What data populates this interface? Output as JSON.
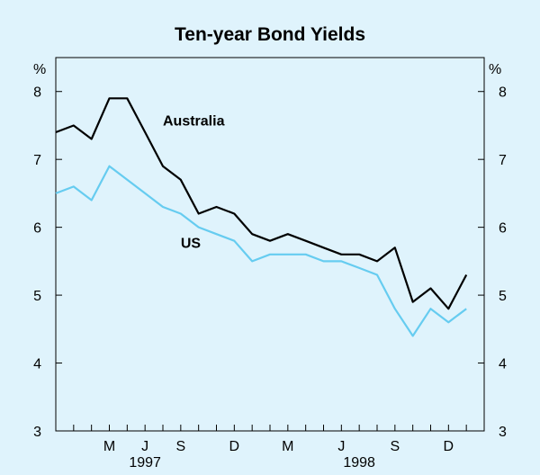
{
  "chart_data": {
    "type": "line",
    "title": "Ten-year Bond Yields",
    "y_unit_left": "%",
    "y_unit_right": "%",
    "ylim": [
      3,
      8.5
    ],
    "yticks": [
      3,
      4,
      5,
      6,
      7,
      8
    ],
    "grid": false,
    "legend": "inline labels",
    "xlim": [
      "1997-02",
      "1999-02"
    ],
    "x_ticks": [
      {
        "label": "M",
        "x": "1997-05"
      },
      {
        "label": "J",
        "x": "1997-07"
      },
      {
        "label": "S",
        "x": "1997-09"
      },
      {
        "label": "D",
        "x": "1997-12"
      },
      {
        "label": "M",
        "x": "1998-03"
      },
      {
        "label": "J",
        "x": "1998-06"
      },
      {
        "label": "S",
        "x": "1998-09"
      },
      {
        "label": "D",
        "x": "1998-12"
      }
    ],
    "year_labels": [
      {
        "label": "1997",
        "x": "1997-07"
      },
      {
        "label": "1998",
        "x": "1998-07"
      }
    ],
    "series": [
      {
        "name": "Australia",
        "color": "#000000",
        "x": [
          "1997-02",
          "1997-03",
          "1997-04",
          "1997-05",
          "1997-06",
          "1997-07",
          "1997-08",
          "1997-09",
          "1997-10",
          "1997-11",
          "1997-12",
          "1998-01",
          "1998-02",
          "1998-03",
          "1998-04",
          "1998-05",
          "1998-06",
          "1998-07",
          "1998-08",
          "1998-09",
          "1998-10",
          "1998-11",
          "1998-12",
          "1999-01"
        ],
        "values": [
          7.4,
          7.5,
          7.3,
          7.9,
          7.9,
          7.4,
          6.9,
          6.7,
          6.2,
          6.3,
          6.2,
          5.9,
          5.8,
          5.9,
          5.8,
          5.7,
          5.6,
          5.6,
          5.5,
          5.7,
          4.9,
          5.1,
          4.8,
          5.3
        ]
      },
      {
        "name": "US",
        "color": "#66ccf0",
        "x": [
          "1997-02",
          "1997-03",
          "1997-04",
          "1997-05",
          "1997-06",
          "1997-07",
          "1997-08",
          "1997-09",
          "1997-10",
          "1997-11",
          "1997-12",
          "1998-01",
          "1998-02",
          "1998-03",
          "1998-04",
          "1998-05",
          "1998-06",
          "1998-07",
          "1998-08",
          "1998-09",
          "1998-10",
          "1998-11",
          "1998-12",
          "1999-01"
        ],
        "values": [
          6.5,
          6.6,
          6.4,
          6.9,
          6.7,
          6.5,
          6.3,
          6.2,
          6.0,
          5.9,
          5.8,
          5.5,
          5.6,
          5.6,
          5.6,
          5.5,
          5.5,
          5.4,
          5.3,
          4.8,
          4.4,
          4.8,
          4.6,
          4.8
        ]
      }
    ],
    "series_labels": [
      {
        "text": "Australia",
        "x": "1997-08",
        "y": 7.5
      },
      {
        "text": "US",
        "x": "1997-09",
        "y": 5.7
      }
    ]
  }
}
